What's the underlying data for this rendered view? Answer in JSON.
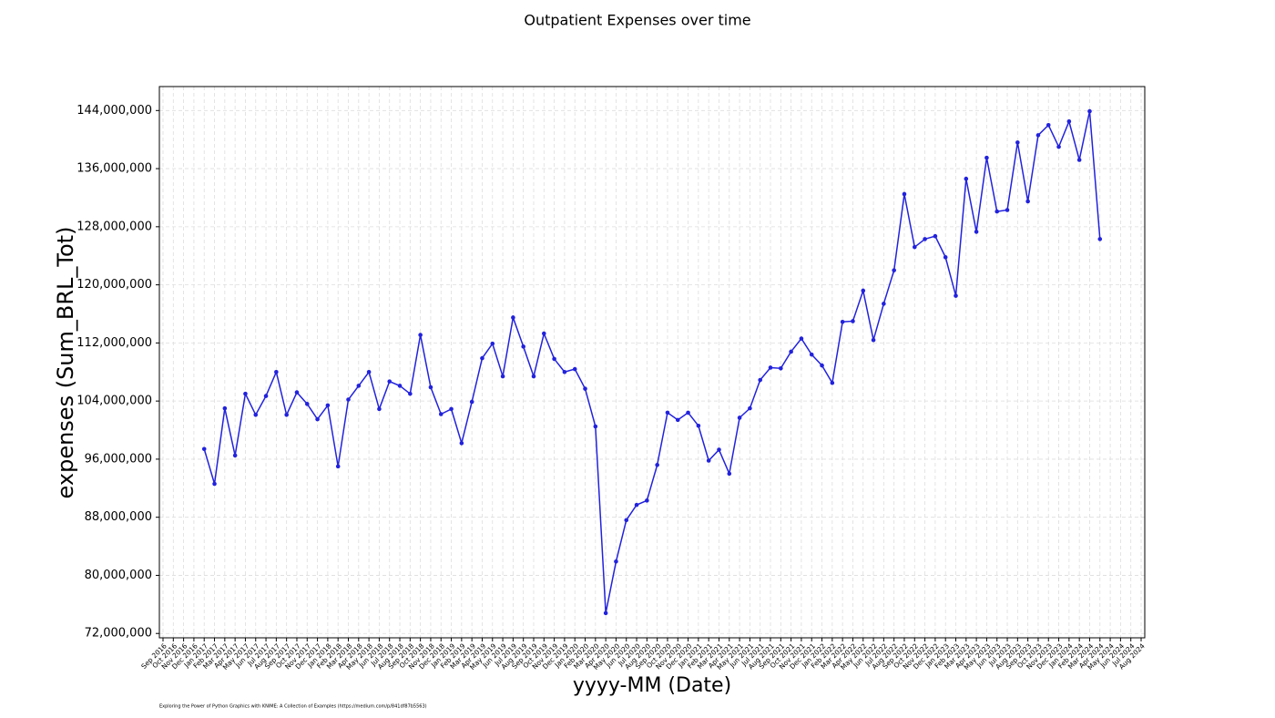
{
  "chart_data": {
    "type": "line",
    "title": "Outpatient Expenses over time",
    "x_label": "yyyy-MM (Date)",
    "y_label": "expenses (Sum_BRL_Tot)",
    "footnote": "Exploring the Power of Python Graphics with KNIME: A Collection of Examples (https://medium.com/p/841df87b5563)",
    "categories": [
      "Sep 2016",
      "Oct 2016",
      "Nov 2016",
      "Dec 2016",
      "Jan 2017",
      "Feb 2017",
      "Mar 2017",
      "Apr 2017",
      "May 2017",
      "Jun 2017",
      "Jul 2017",
      "Aug 2017",
      "Sep 2017",
      "Oct 2017",
      "Nov 2017",
      "Dec 2017",
      "Jan 2018",
      "Feb 2018",
      "Mar 2018",
      "Apr 2018",
      "May 2018",
      "Jun 2018",
      "Jul 2018",
      "Aug 2018",
      "Sep 2018",
      "Oct 2018",
      "Nov 2018",
      "Dec 2018",
      "Jan 2019",
      "Feb 2019",
      "Mar 2019",
      "Apr 2019",
      "May 2019",
      "Jun 2019",
      "Jul 2019",
      "Aug 2019",
      "Sep 2019",
      "Oct 2019",
      "Nov 2019",
      "Dec 2019",
      "Jan 2020",
      "Feb 2020",
      "Mar 2020",
      "Apr 2020",
      "May 2020",
      "Jun 2020",
      "Jul 2020",
      "Aug 2020",
      "Sep 2020",
      "Oct 2020",
      "Nov 2020",
      "Dec 2020",
      "Jan 2021",
      "Feb 2021",
      "Mar 2021",
      "Apr 2021",
      "May 2021",
      "Jun 2021",
      "Jul 2021",
      "Aug 2021",
      "Sep 2021",
      "Oct 2021",
      "Nov 2021",
      "Dec 2021",
      "Jan 2022",
      "Feb 2022",
      "Mar 2022",
      "Apr 2022",
      "May 2022",
      "Jun 2022",
      "Jul 2022",
      "Aug 2022",
      "Sep 2022",
      "Oct 2022",
      "Nov 2022",
      "Dec 2022",
      "Jan 2023",
      "Feb 2023",
      "Mar 2023",
      "Apr 2023",
      "May 2023",
      "Jun 2023",
      "Jul 2023",
      "Aug 2023",
      "Sep 2023",
      "Oct 2023",
      "Nov 2023",
      "Dec 2023",
      "Jan 2024",
      "Feb 2024",
      "Mar 2024",
      "Apr 2024",
      "May 2024",
      "Jun 2024",
      "Jul 2024",
      "Aug 2024"
    ],
    "series": [
      {
        "name": "expenses (Sum_BRL_Tot)",
        "color": "#2222dd",
        "values": [
          null,
          null,
          null,
          null,
          97400000,
          92600000,
          103000000,
          96500000,
          105000000,
          102100000,
          104700000,
          108000000,
          102100000,
          105200000,
          103600000,
          101500000,
          103400000,
          95000000,
          104200000,
          106100000,
          108000000,
          102900000,
          106700000,
          106100000,
          105000000,
          113100000,
          105900000,
          102200000,
          102900000,
          98200000,
          103900000,
          109900000,
          111900000,
          107400000,
          115500000,
          111500000,
          107400000,
          113300000,
          109800000,
          108000000,
          108400000,
          105700000,
          100500000,
          74800000,
          81900000,
          87600000,
          89700000,
          90300000,
          95200000,
          102400000,
          101400000,
          102400000,
          100600000,
          95800000,
          97300000,
          94000000,
          101700000,
          103000000,
          106900000,
          108600000,
          108500000,
          110800000,
          112600000,
          110400000,
          108900000,
          106500000,
          114900000,
          115000000,
          119200000,
          112400000,
          117400000,
          122000000,
          132500000,
          125200000,
          126300000,
          126700000,
          123800000,
          118500000,
          134600000,
          127300000,
          137500000,
          130100000,
          130300000,
          139600000,
          131500000,
          140600000,
          142000000,
          139000000,
          142500000,
          137200000,
          143900000,
          126300000,
          null,
          null,
          null,
          null
        ]
      }
    ],
    "ylim": [
      71400000,
      147300000
    ],
    "yticks": [
      {
        "value": 72000000,
        "label": "72,000,000"
      },
      {
        "value": 80000000,
        "label": "80,000,000"
      },
      {
        "value": 88000000,
        "label": "88,000,000"
      },
      {
        "value": 96000000,
        "label": "96,000,000"
      },
      {
        "value": 104000000,
        "label": "104,000,000"
      },
      {
        "value": 112000000,
        "label": "112,000,000"
      },
      {
        "value": 120000000,
        "label": "120,000,000"
      },
      {
        "value": 128000000,
        "label": "128,000,000"
      },
      {
        "value": 136000000,
        "label": "136,000,000"
      },
      {
        "value": 144000000,
        "label": "144,000,000"
      }
    ],
    "tick_label_color": "#0000ee",
    "grid": true
  }
}
